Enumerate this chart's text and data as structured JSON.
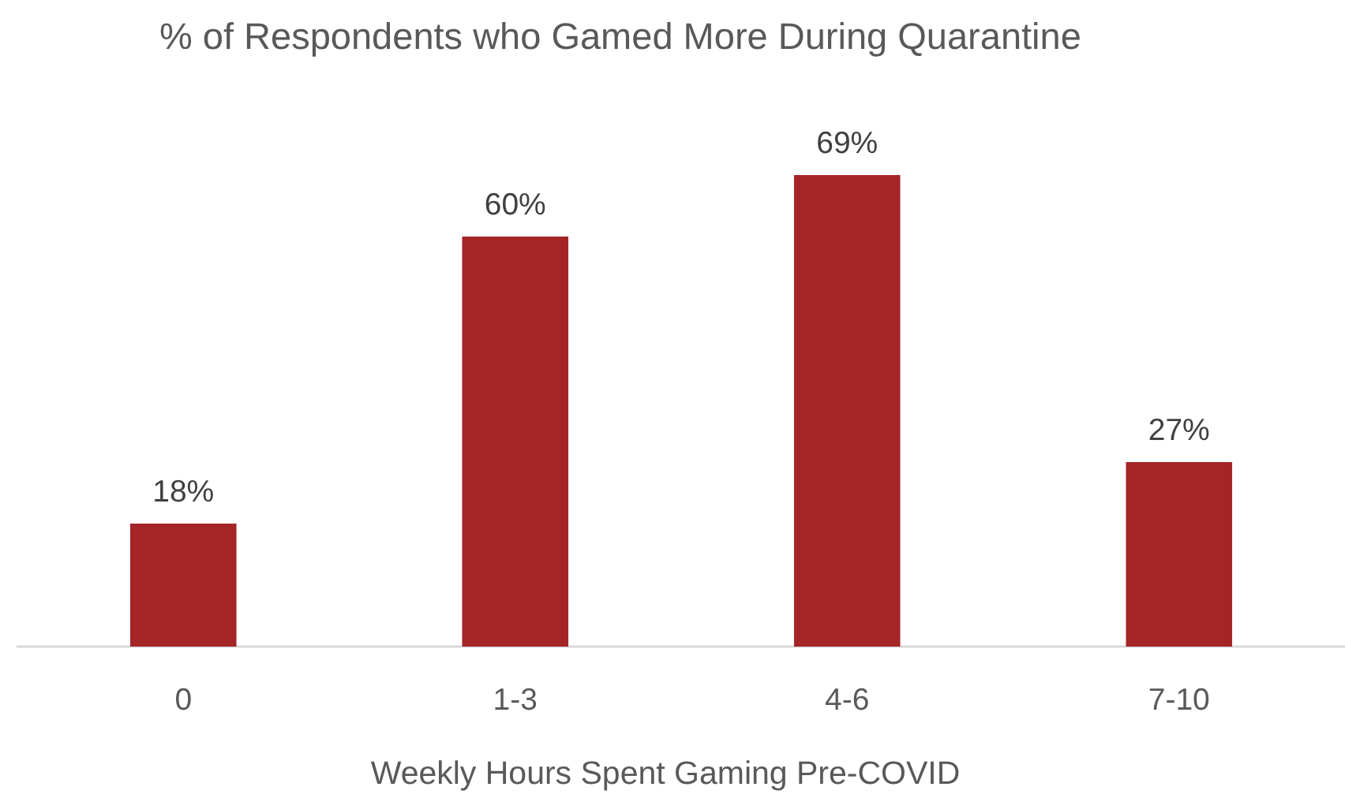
{
  "chart_data": {
    "type": "bar",
    "title": "% of Respondents who Gamed More During Quarantine",
    "xlabel": "Weekly Hours Spent Gaming Pre-COVID",
    "categories": [
      "0",
      "1-3",
      "4-6",
      "7-10"
    ],
    "values": [
      18,
      60,
      69,
      27
    ],
    "value_labels": [
      "18%",
      "60%",
      "69%",
      "27%"
    ],
    "color": "#a52428"
  }
}
